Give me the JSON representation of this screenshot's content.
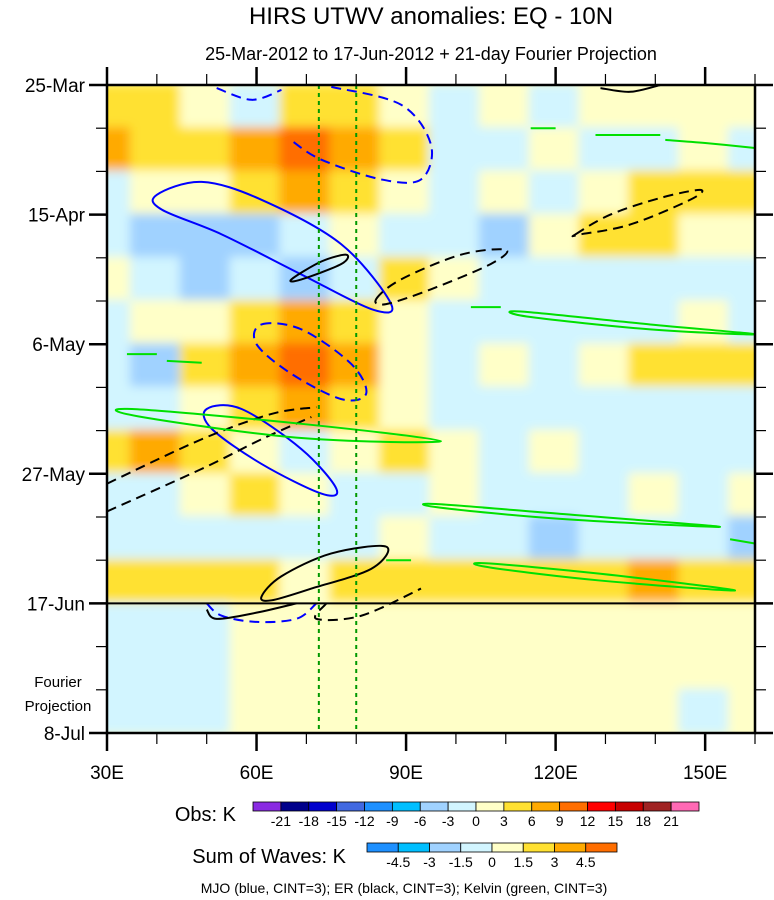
{
  "chart_data": {
    "type": "heatmap",
    "title": "HIRS UTWV anomalies: EQ - 10N",
    "subtitle": "25-Mar-2012 to 17-Jun-2012 + 21-day Fourier Projection",
    "xlabel": "",
    "ylabel": "",
    "xlim": [
      30,
      160
    ],
    "ylim_days": [
      0,
      105
    ],
    "x_ticks": [
      {
        "value": 30,
        "label": "30E"
      },
      {
        "value": 60,
        "label": "60E"
      },
      {
        "value": 90,
        "label": "90E"
      },
      {
        "value": 120,
        "label": "120E"
      },
      {
        "value": 150,
        "label": "150E"
      }
    ],
    "x_minor_step": 10,
    "y_ticks": [
      {
        "day": 0,
        "label": "25-Mar"
      },
      {
        "day": 21,
        "label": "15-Apr"
      },
      {
        "day": 42,
        "label": "6-May"
      },
      {
        "day": 63,
        "label": "27-May"
      },
      {
        "day": 84,
        "label": "17-Jun"
      },
      {
        "day": 105,
        "label": "8-Jul"
      }
    ],
    "y_minor_step_days": 7,
    "projection_label": [
      "Fourier",
      "Projection"
    ],
    "projection_start_day": 84,
    "reference_lon_lines": [
      72.5,
      80
    ],
    "grid": {
      "lons": [
        30,
        40,
        50,
        60,
        70,
        80,
        90,
        100,
        110,
        120,
        130,
        140,
        150,
        160
      ],
      "days": [
        3.5,
        10.5,
        17.5,
        24.5,
        31.5,
        38.5,
        45.5,
        52.5,
        59.5,
        66.5,
        73.5,
        80.5,
        87.5,
        94.5,
        101.5
      ],
      "values": [
        [
          3,
          3,
          0,
          -2,
          3,
          3,
          0,
          -2,
          0,
          -2,
          0,
          2,
          0,
          1
        ],
        [
          6,
          3,
          3,
          6,
          9,
          6,
          3,
          -2,
          -2,
          0,
          -2,
          -2,
          0,
          -2
        ],
        [
          -2,
          0,
          0,
          3,
          6,
          3,
          0,
          -2,
          0,
          -2,
          0,
          3,
          4,
          4
        ],
        [
          -2,
          -5,
          -6,
          -4,
          -2,
          0,
          -2,
          -3,
          -4,
          0,
          3,
          3,
          0,
          0
        ],
        [
          0,
          -3,
          -5,
          -3,
          -4,
          -2,
          3,
          0,
          -3,
          -2,
          -3,
          -2,
          -3,
          -2
        ],
        [
          -2,
          0,
          2,
          3,
          6,
          3,
          0,
          -3,
          -2,
          -3,
          -2,
          -3,
          0,
          -2
        ],
        [
          -3,
          -4,
          3,
          6,
          9,
          6,
          0,
          -2,
          0,
          -2,
          0,
          3,
          4,
          3
        ],
        [
          -2,
          -3,
          0,
          3,
          6,
          3,
          0,
          -3,
          -2,
          -3,
          -2,
          -3,
          -2,
          -3
        ],
        [
          3,
          6,
          3,
          0,
          -2,
          0,
          3,
          0,
          -2,
          0,
          -2,
          -3,
          -2,
          -2
        ],
        [
          -2,
          -3,
          0,
          3,
          0,
          -2,
          -3,
          0,
          -3,
          -2,
          -2,
          0,
          -2,
          0
        ],
        [
          -3,
          -3,
          -2,
          -3,
          -2,
          -3,
          0,
          -2,
          -3,
          -5,
          -2,
          -3,
          -3,
          -4
        ],
        [
          3,
          4,
          3,
          3,
          0,
          3,
          4,
          3,
          3,
          3,
          4,
          6,
          3,
          3
        ],
        [
          -1,
          -1,
          -1,
          0.5,
          2,
          2,
          1,
          0.5,
          0.5,
          0.5,
          0.5,
          0.5,
          0.5,
          0.5
        ],
        [
          -1,
          -1,
          -1,
          0.5,
          0.5,
          0.5,
          0.5,
          0.5,
          0.5,
          0.5,
          0.5,
          0.5,
          0.5,
          0.5
        ],
        [
          -1,
          -1.5,
          -1,
          0.5,
          0.5,
          0.5,
          0.5,
          0.5,
          0.5,
          0.5,
          0.5,
          0.5,
          -0.5,
          0.5
        ]
      ]
    },
    "contours": [
      {
        "wave": "MJO",
        "color": "#0000ff",
        "dashed": false,
        "closed": true,
        "points": [
          [
            40,
            17.8
          ],
          [
            49,
            15.7
          ],
          [
            61,
            18.6
          ],
          [
            77,
            25.8
          ],
          [
            87,
            35.5
          ],
          [
            83,
            36.3
          ],
          [
            69,
            30.7
          ],
          [
            53,
            24.2
          ],
          [
            41,
            20.2
          ]
        ]
      },
      {
        "wave": "MJO",
        "color": "#0000ff",
        "dashed": false,
        "closed": true,
        "points": [
          [
            50,
            52.5
          ],
          [
            57,
            52.5
          ],
          [
            69,
            59
          ],
          [
            76,
            65.4
          ],
          [
            73,
            66.2
          ],
          [
            61,
            61.4
          ],
          [
            51,
            55.7
          ]
        ]
      },
      {
        "wave": "MJO",
        "color": "#0000ff",
        "dashed": true,
        "closed": false,
        "points": [
          [
            75,
            0.3
          ],
          [
            89,
            3.2
          ],
          [
            95,
            9.7
          ],
          [
            93,
            15.3
          ],
          [
            85,
            15.3
          ],
          [
            73,
            12.1
          ],
          [
            67,
            9
          ]
        ]
      },
      {
        "wave": "MJO",
        "color": "#0000ff",
        "dashed": true,
        "closed": false,
        "points": [
          [
            52,
            0.5
          ],
          [
            59,
            2.4
          ],
          [
            65,
            0.8
          ]
        ]
      },
      {
        "wave": "MJO",
        "color": "#0000ff",
        "dashed": true,
        "closed": true,
        "points": [
          [
            61,
            38.8
          ],
          [
            69,
            39.6
          ],
          [
            79,
            45.2
          ],
          [
            82,
            50
          ],
          [
            77,
            50.9
          ],
          [
            67,
            46.8
          ],
          [
            60,
            42
          ]
        ]
      },
      {
        "wave": "MJO",
        "color": "#0000ff",
        "dashed": true,
        "closed": false,
        "points": [
          [
            50,
            84
          ],
          [
            53,
            86
          ],
          [
            60,
            87
          ],
          [
            68,
            86.5
          ],
          [
            72,
            84
          ]
        ]
      },
      {
        "wave": "ER",
        "color": "#000000",
        "dashed": false,
        "closed": false,
        "points": [
          [
            129,
            0.5
          ],
          [
            135,
            1.1
          ],
          [
            141,
            0
          ]
        ]
      },
      {
        "wave": "ER",
        "color": "#000000",
        "dashed": false,
        "closed": true,
        "points": [
          [
            67,
            31.5
          ],
          [
            73,
            28.6
          ],
          [
            78,
            27.5
          ],
          [
            77,
            29
          ],
          [
            69,
            31.5
          ]
        ]
      },
      {
        "wave": "ER",
        "color": "#000000",
        "dashed": false,
        "closed": true,
        "points": [
          [
            61,
            82.9
          ],
          [
            65,
            79.6
          ],
          [
            75,
            75.9
          ],
          [
            86,
            74.8
          ],
          [
            83,
            78.4
          ],
          [
            71,
            81.6
          ],
          [
            63,
            83.5
          ]
        ]
      },
      {
        "wave": "ER",
        "color": "#000000",
        "dashed": false,
        "closed": false,
        "points": [
          [
            50,
            85
          ],
          [
            52,
            86.5
          ],
          [
            60,
            85.5
          ],
          [
            68,
            84
          ]
        ]
      },
      {
        "wave": "ER",
        "color": "#000000",
        "dashed": true,
        "closed": true,
        "points": [
          [
            84,
            34.7
          ],
          [
            89,
            31.5
          ],
          [
            101,
            27.5
          ],
          [
            110,
            26.7
          ],
          [
            107,
            29
          ],
          [
            95,
            33.1
          ],
          [
            86,
            35.5
          ]
        ]
      },
      {
        "wave": "ER",
        "color": "#000000",
        "dashed": true,
        "closed": true,
        "points": [
          [
            124,
            24.2
          ],
          [
            131,
            21
          ],
          [
            141,
            18.3
          ],
          [
            149,
            17
          ],
          [
            147,
            18.6
          ],
          [
            135,
            22.6
          ],
          [
            125,
            24.2
          ]
        ]
      },
      {
        "wave": "ER",
        "color": "#000000",
        "dashed": true,
        "closed": false,
        "points": [
          [
            30,
            64.6
          ],
          [
            49,
            57.4
          ],
          [
            63,
            53.3
          ],
          [
            72,
            52.2
          ]
        ]
      },
      {
        "wave": "ER",
        "color": "#000000",
        "dashed": true,
        "closed": false,
        "points": [
          [
            30,
            69.1
          ],
          [
            49,
            62.2
          ],
          [
            61,
            57.4
          ],
          [
            71,
            53.8
          ]
        ]
      },
      {
        "wave": "ER",
        "color": "#000000",
        "dashed": true,
        "closed": false,
        "points": [
          [
            74,
            84
          ],
          [
            72,
            86.5
          ],
          [
            81,
            86
          ],
          [
            93,
            81.6
          ]
        ]
      },
      {
        "wave": "Kelvin",
        "color": "#00e000",
        "dashed": false,
        "closed": true,
        "points": [
          [
            35,
            52.5
          ],
          [
            69,
            54.9
          ],
          [
            97,
            57.7
          ],
          [
            69,
            57.2
          ],
          [
            37,
            53.8
          ]
        ]
      },
      {
        "wave": "Kelvin",
        "color": "#00e000",
        "dashed": false,
        "closed": true,
        "points": [
          [
            113,
            36.7
          ],
          [
            139,
            38.8
          ],
          [
            160,
            40.4
          ],
          [
            139,
            39.6
          ],
          [
            115,
            37.6
          ]
        ]
      },
      {
        "wave": "Kelvin",
        "color": "#00e000",
        "dashed": false,
        "closed": true,
        "points": [
          [
            96,
            67.9
          ],
          [
            121,
            69.5
          ],
          [
            153,
            71.6
          ],
          [
            121,
            70.3
          ],
          [
            97,
            68.5
          ]
        ]
      },
      {
        "wave": "Kelvin",
        "color": "#00e000",
        "dashed": false,
        "closed": true,
        "points": [
          [
            106,
            77.5
          ],
          [
            129,
            79.2
          ],
          [
            156,
            81.9
          ],
          [
            129,
            80.3
          ],
          [
            107,
            78.2
          ]
        ]
      },
      {
        "wave": "Kelvin",
        "color": "#00e000",
        "dashed": false,
        "closed": false,
        "points": [
          [
            142,
            8.9
          ],
          [
            150,
            9.4
          ],
          [
            160,
            10.2
          ]
        ]
      },
      {
        "wave": "Kelvin",
        "color": "#00e000",
        "dashed": false,
        "closed": false,
        "points": [
          [
            128,
            8.1
          ],
          [
            141,
            8.1
          ]
        ]
      },
      {
        "wave": "Kelvin",
        "color": "#00e000",
        "dashed": false,
        "closed": false,
        "points": [
          [
            115,
            7
          ],
          [
            120,
            7
          ]
        ]
      },
      {
        "wave": "Kelvin",
        "color": "#00e000",
        "dashed": false,
        "closed": false,
        "points": [
          [
            42,
            44.7
          ],
          [
            49,
            45
          ]
        ]
      },
      {
        "wave": "Kelvin",
        "color": "#00e000",
        "dashed": false,
        "closed": false,
        "points": [
          [
            34,
            43.6
          ],
          [
            40,
            43.6
          ]
        ]
      },
      {
        "wave": "Kelvin",
        "color": "#00e000",
        "dashed": false,
        "closed": false,
        "points": [
          [
            103,
            36
          ],
          [
            109,
            36
          ]
        ]
      },
      {
        "wave": "Kelvin",
        "color": "#00e000",
        "dashed": false,
        "closed": false,
        "points": [
          [
            155,
            73.6
          ],
          [
            160,
            74.3
          ]
        ]
      },
      {
        "wave": "Kelvin",
        "color": "#00e000",
        "dashed": false,
        "closed": false,
        "points": [
          [
            86,
            77
          ],
          [
            91,
            77
          ]
        ]
      }
    ],
    "obs_colorbar": {
      "label": "Obs: K",
      "levels": [
        -21,
        -18,
        -15,
        -12,
        -9,
        -6,
        -3,
        0,
        3,
        6,
        9,
        12,
        15,
        18,
        21
      ],
      "colors": [
        "#8a2be2",
        "#00008b",
        "#0000cd",
        "#4169e1",
        "#1e90ff",
        "#00bfff",
        "#a0d2ff",
        "#d2f5ff",
        "#ffffc8",
        "#ffe132",
        "#ffaa00",
        "#ff6e00",
        "#ff0000",
        "#c80000",
        "#a02323",
        "#ff69b4"
      ]
    },
    "waves_colorbar": {
      "label": "Sum of Waves: K",
      "levels": [
        -4.5,
        -3,
        -1.5,
        0,
        1.5,
        3,
        4.5
      ],
      "colors": [
        "#1e90ff",
        "#00bfff",
        "#a0d2ff",
        "#d2f5ff",
        "#ffffc8",
        "#ffe132",
        "#ffaa00",
        "#ff6e00"
      ]
    },
    "legend_note": "MJO (blue, CINT=3); ER (black, CINT=3); Kelvin (green, CINT=3)"
  }
}
